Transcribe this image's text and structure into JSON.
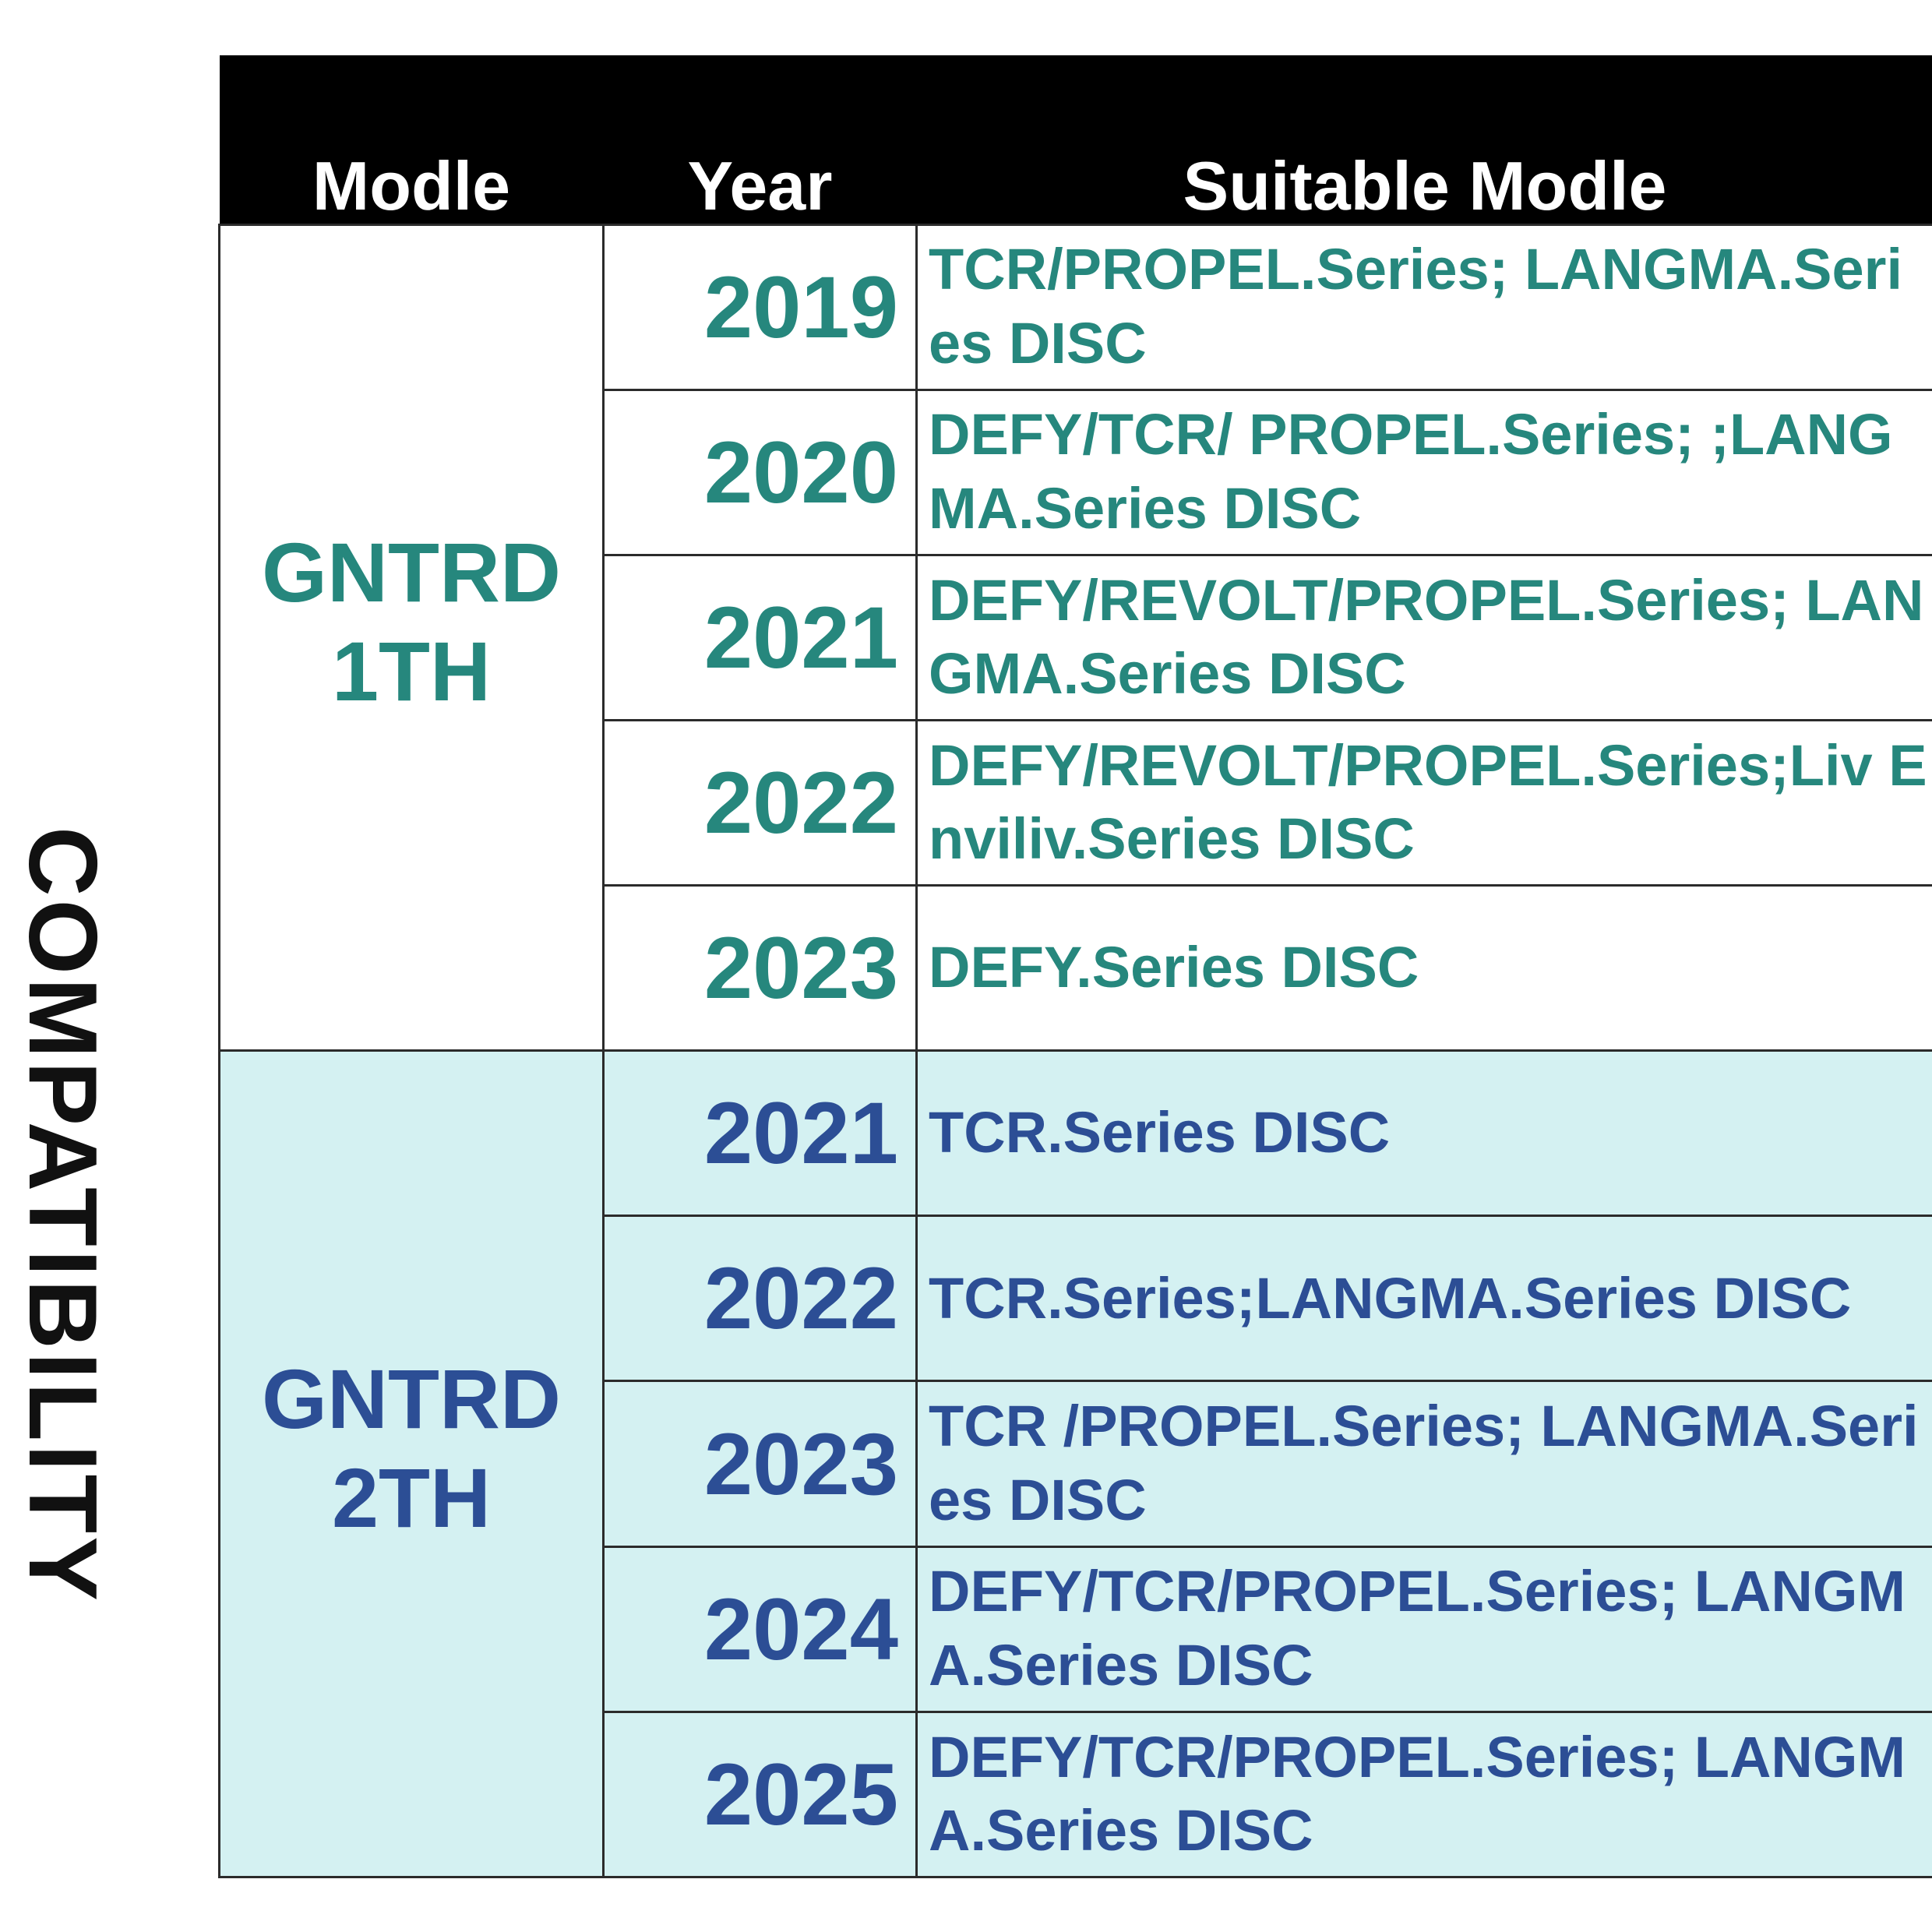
{
  "side_title": "COMPATIBILITY",
  "table": {
    "headers": [
      "Modle",
      "Year",
      "Suitable Modle"
    ],
    "groups": [
      {
        "model_lines": [
          "GNTRD",
          "1TH"
        ],
        "rows": [
          {
            "year": "2019",
            "suitable": "TCR/PROPEL.Series; LANGMA.Series DISC"
          },
          {
            "year": "2020",
            "suitable": "DEFY/TCR/ PROPEL.Series; ;LANGMA.Series DISC"
          },
          {
            "year": "2021",
            "suitable": "DEFY/REVOLT/PROPEL.Series; LANGMA.Series DISC"
          },
          {
            "year": "2022",
            "suitable": "DEFY/REVOLT/PROPEL.Series;Liv Enviliv.Series DISC"
          },
          {
            "year": "2023",
            "suitable": "DEFY.Series DISC"
          }
        ]
      },
      {
        "model_lines": [
          "GNTRD",
          "2TH"
        ],
        "rows": [
          {
            "year": "2021",
            "suitable": "TCR.Series DISC"
          },
          {
            "year": "2022",
            "suitable": "TCR.Series;LANGMA.Series DISC"
          },
          {
            "year": "2023",
            "suitable": "TCR /PROPEL.Series; LANGMA.Series DISC"
          },
          {
            "year": "2024",
            "suitable": "DEFY/TCR/PROPEL.Series; LANGMA.Series DISC"
          },
          {
            "year": "2025",
            "suitable": "DEFY/TCR/PROPEL.Series; LANGMA.Series DISC"
          }
        ]
      }
    ]
  },
  "colors": {
    "header_bg": "#000000",
    "header_text": "#ffffff",
    "group1_text": "#26877d",
    "group2_text": "#2c4e95",
    "group2_bg": "#d4f1f2"
  }
}
